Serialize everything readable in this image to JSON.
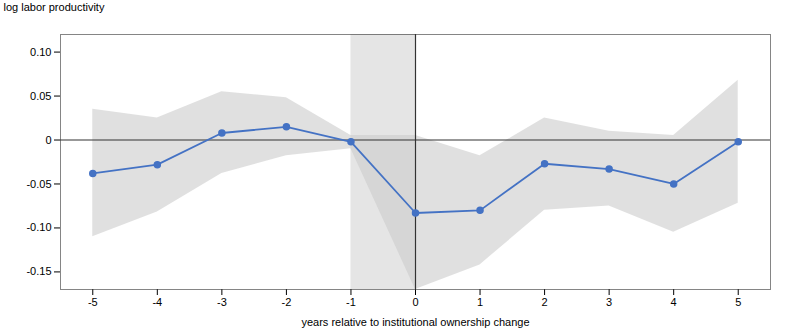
{
  "chart_data": {
    "type": "line",
    "x": [
      -5,
      -4,
      -3,
      -2,
      -1,
      0,
      1,
      2,
      3,
      4,
      5
    ],
    "values": [
      -0.038,
      -0.028,
      0.008,
      0.015,
      -0.002,
      -0.083,
      -0.08,
      -0.027,
      -0.033,
      -0.05,
      -0.002
    ],
    "ci_upper": [
      0.035,
      0.025,
      0.055,
      0.048,
      0.005,
      0.005,
      -0.018,
      0.025,
      0.01,
      0.005,
      0.068
    ],
    "ci_lower": [
      -0.11,
      -0.082,
      -0.038,
      -0.018,
      -0.01,
      -0.17,
      -0.142,
      -0.08,
      -0.075,
      -0.105,
      -0.072
    ],
    "shaded_region": [
      -1,
      0
    ],
    "color": "#4472c4",
    "marker": "circle",
    "xlabel": "years relative to institutional ownership change",
    "ylabel": "log labor productivity",
    "xlim": [
      -5.5,
      5.5
    ],
    "ylim": [
      -0.17,
      0.12
    ],
    "xticks": [
      -5,
      -4,
      -3,
      -2,
      -1,
      0,
      1,
      2,
      3,
      4,
      5
    ],
    "yticks": [
      -0.15,
      {
        "value": -0.1,
        "label": "-0.10"
      },
      -0.05,
      0,
      0.05,
      {
        "value": 0.1,
        "label": "0.10"
      }
    ],
    "grid": false
  }
}
